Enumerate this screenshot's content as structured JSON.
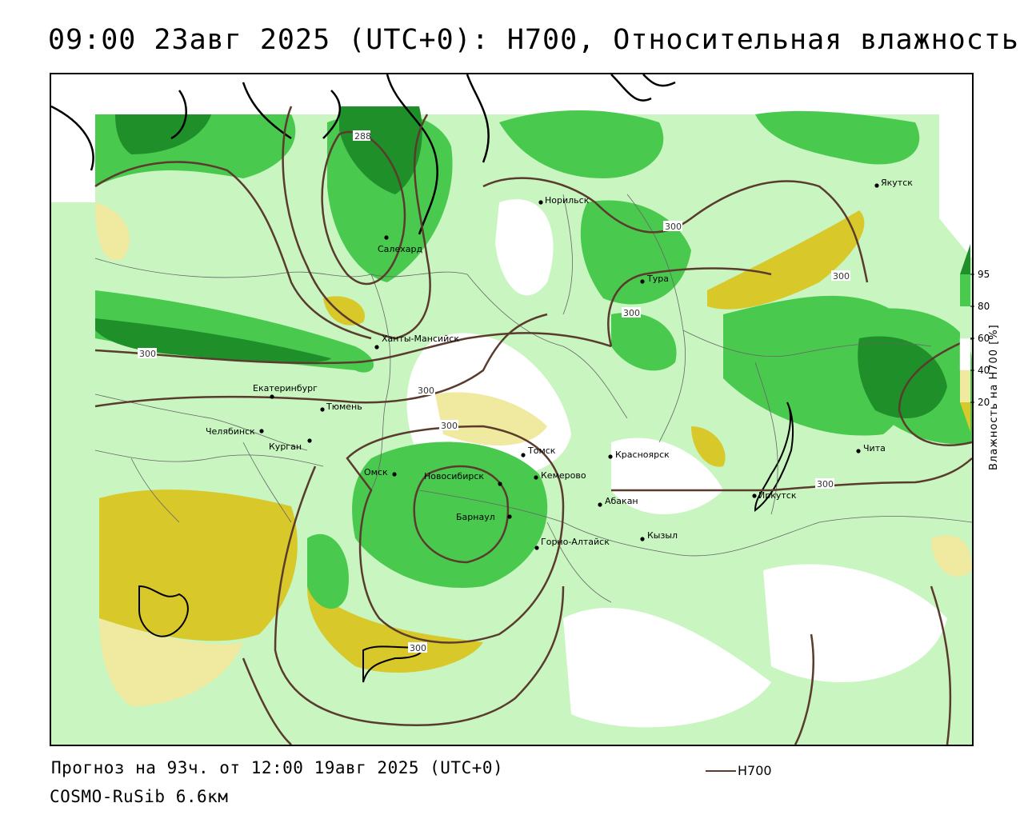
{
  "title": "09:00 23авг 2025 (UTC+0): H700, Относительная влажность",
  "forecast_line": "Прогноз на 93ч. от 12:00 19авг 2025 (UTC+0)",
  "model_line": "COSMO-RuSib 6.6км",
  "line_legend": {
    "label": "H700",
    "color": "#5a3b2e"
  },
  "colorbar": {
    "title": "Влажность на H700 [%]",
    "ticks": [
      "95",
      "80",
      "60",
      "40",
      "20"
    ],
    "colors": {
      "c95": "#1f8f2a",
      "c80": "#49c94e",
      "c60": "#c8f5c0",
      "c40": "#ffffff",
      "c20": "#f0eaa0",
      "c0": "#d8c82a"
    }
  },
  "cities": [
    {
      "name": "Якутск"
    },
    {
      "name": "Норильск"
    },
    {
      "name": "Салехард"
    },
    {
      "name": "Тура"
    },
    {
      "name": "Ханты-Мансийск"
    },
    {
      "name": "Екатеринбург"
    },
    {
      "name": "Тюмень"
    },
    {
      "name": "Челябинск"
    },
    {
      "name": "Курган"
    },
    {
      "name": "Омск"
    },
    {
      "name": "Новосибирск"
    },
    {
      "name": "Томск"
    },
    {
      "name": "Кемерово"
    },
    {
      "name": "Красноярск"
    },
    {
      "name": "Абакан"
    },
    {
      "name": "Барнаул"
    },
    {
      "name": "Горно-Алтайск"
    },
    {
      "name": "Кызыл"
    },
    {
      "name": "Иркутск"
    },
    {
      "name": "Чита"
    }
  ],
  "contour_labels": [
    "288",
    "300",
    "300",
    "300",
    "300",
    "300",
    "300",
    "300",
    "300"
  ]
}
